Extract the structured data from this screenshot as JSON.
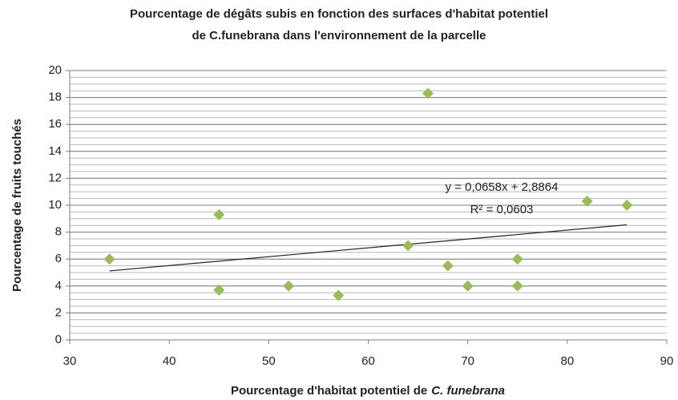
{
  "chart_data": {
    "type": "scatter",
    "title": [
      "Pourcentage de dégâts subis en fonction des surfaces d'habitat potentiel",
      "de C.funebrana dans l'environnement de la parcelle"
    ],
    "xlabel": [
      "Pourcentage d'habitat potentiel de",
      "C. funebrana"
    ],
    "ylabel": "Pourcentage de fruits touchés",
    "x": [
      34,
      45,
      45,
      52,
      57,
      64,
      66,
      68,
      70,
      75,
      75,
      82,
      86
    ],
    "values": [
      6,
      9.3,
      3.7,
      4,
      3.3,
      7,
      18.3,
      5.5,
      4,
      6,
      4,
      10.3,
      10
    ],
    "color": "#9bbb59",
    "xlim": [
      30,
      90
    ],
    "xticks": [
      30,
      40,
      50,
      60,
      70,
      80,
      90
    ],
    "ylim": [
      0,
      20
    ],
    "yticks": [
      0,
      2,
      4,
      6,
      8,
      10,
      12,
      14,
      16,
      18,
      20
    ],
    "grid": true,
    "minor_ystep": 0.5,
    "trendline": {
      "slope": 0.0658,
      "intercept": 2.8864,
      "equation": "y = 0,0658x + 2,8864",
      "r2": "R² = 0,0603"
    }
  }
}
